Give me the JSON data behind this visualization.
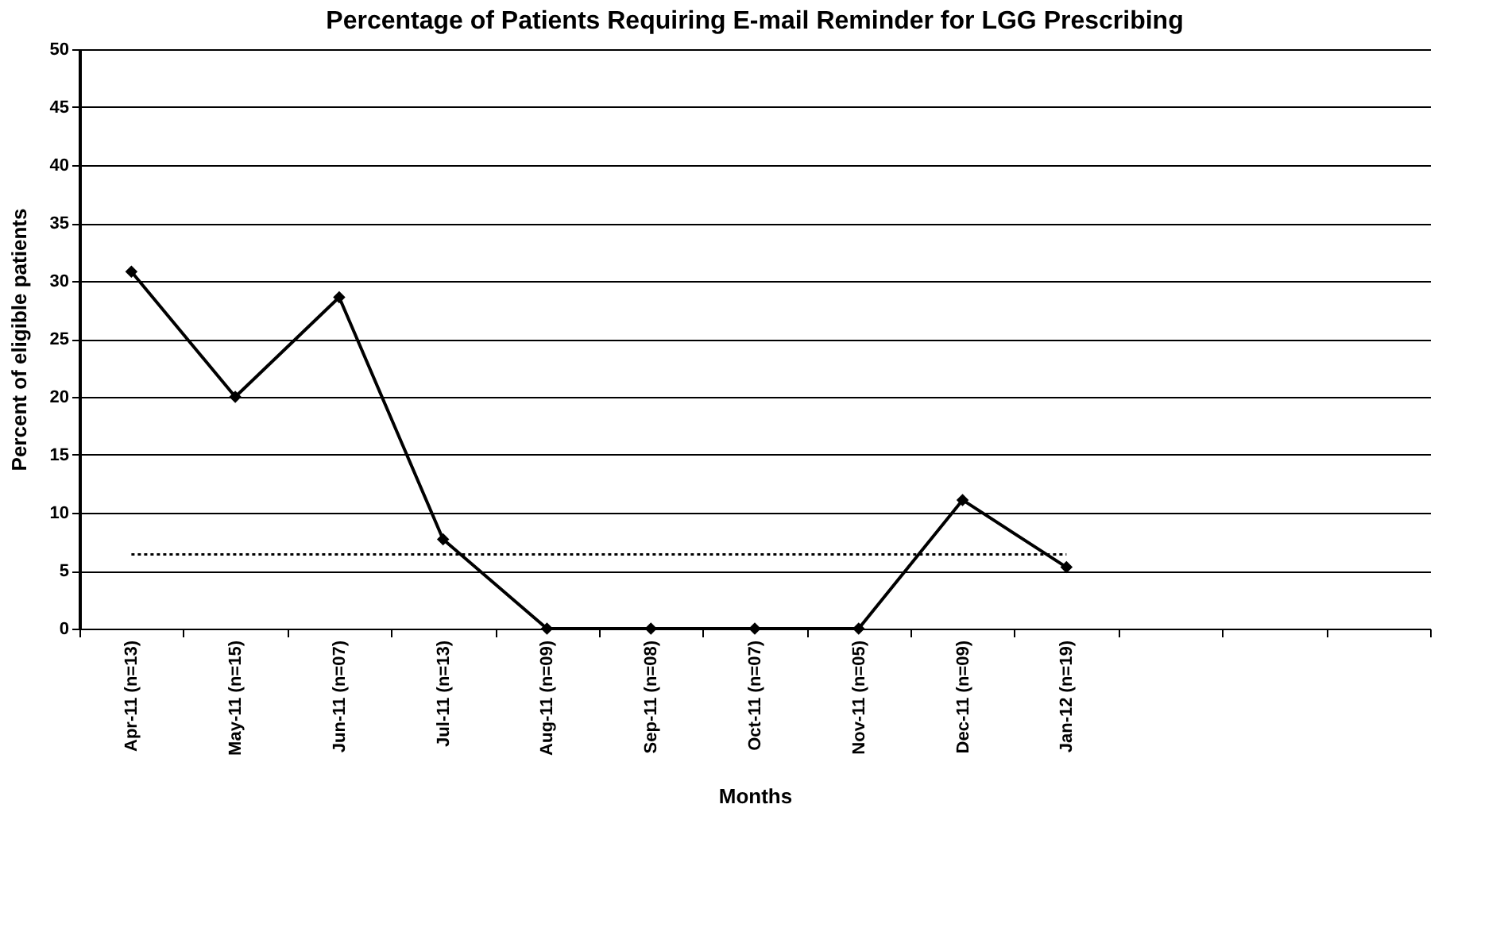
{
  "chart_data": {
    "type": "line",
    "title": "Percentage of Patients Requiring E-mail Reminder for LGG Prescribing",
    "xlabel": "Months",
    "ylabel": "Percent of eligible patients",
    "categories": [
      "Apr-11 (n=13)",
      "May-11 (n=15)",
      "Jun-11 (n=07)",
      "Jul-11 (n=13)",
      "Aug-11 (n=09)",
      "Sep-11 (n=08)",
      "Oct-11 (n=07)",
      "Nov-11 (n=05)",
      "Dec-11 (n=09)",
      "Jan-12 (n=19)",
      null,
      null,
      null
    ],
    "series": [
      {
        "color": "#000000",
        "marker": "diamond",
        "line_style": "solid",
        "values": [
          30.8,
          20,
          28.6,
          7.7,
          0,
          0,
          0,
          0,
          11.1,
          5.3,
          null,
          null,
          null
        ]
      },
      {
        "color": "#000000",
        "marker": "none",
        "line_style": "dotted",
        "values": [
          6.4,
          6.4,
          6.4,
          6.4,
          6.4,
          6.4,
          6.4,
          6.4,
          6.4,
          6.4,
          null,
          null,
          null
        ]
      }
    ],
    "ylim": [
      0,
      50
    ],
    "yticks": [
      0,
      5,
      10,
      15,
      20,
      25,
      30,
      35,
      40,
      45,
      50
    ],
    "grid": "y"
  }
}
